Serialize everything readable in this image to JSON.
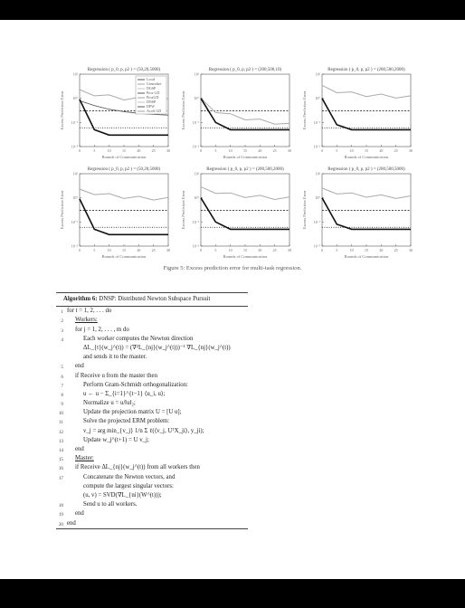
{
  "figure": {
    "caption": "Figure 5: Excess prediction error for multi-task regression.",
    "y_label": "Excess Prediction Error",
    "x_labels": [
      "Rounds of Communication",
      "Rounds of Communication",
      "Rounds of Communication",
      "Rounds of Communication",
      "Rounds of Communication",
      "Rounds of Communication"
    ],
    "panel_titles": [
      "Regression ( p_0, p, p2 ) = (50,20,5000)",
      "Regression ( p_0, p, p2 ) = (200,500,10)",
      "Regression ( p_0, p, p2 ) = (200,500,2000)",
      "Regression ( p_0, p, p2 ) = (50,20,5000)",
      "Regression ( p_0, p, p2 ) = (200,500,2000)",
      "Regression ( p_0, p, p2 ) = (200,500,5000)"
    ],
    "legend": [
      "Local",
      "Centralize",
      "DGSP",
      "Prox GD",
      "ProxGD",
      "DNSP",
      "DFW",
      "Accel GD"
    ],
    "x_ticks": [
      "0",
      "5",
      "10",
      "15",
      "20",
      "25",
      "30"
    ]
  },
  "chart_data": [
    {
      "type": "line",
      "title": "Regression ( p_0, p, p2 ) = (50,20,5000)",
      "xlabel": "Rounds of Communication",
      "ylabel": "Excess Prediction Error",
      "x": [
        0,
        5,
        10,
        15,
        20,
        25,
        30
      ],
      "series": [
        {
          "name": "DGSP",
          "values": [
            2.0,
            1.5,
            1.2,
            1.0,
            0.95,
            0.9,
            0.85
          ]
        },
        {
          "name": "Prox GD",
          "values": [
            0.8,
            0.5,
            0.35,
            0.28,
            0.24,
            0.22,
            0.2
          ]
        },
        {
          "name": "DNSP",
          "values": [
            0.9,
            0.05,
            0.03,
            0.03,
            0.03,
            0.03,
            0.03
          ]
        }
      ]
    },
    {
      "type": "line",
      "title": "Regression ( p_0, p, p2 ) = (200,500,10)",
      "xlabel": "Rounds of Communication",
      "ylabel": "Excess Prediction Error",
      "x": [
        0,
        5,
        10,
        15,
        20,
        25,
        30
      ],
      "series": [
        {
          "name": "DGSP",
          "values": [
            0.9,
            0.3,
            0.2,
            0.15,
            0.12,
            0.1,
            0.08
          ]
        },
        {
          "name": "DNSP",
          "values": [
            1.0,
            0.1,
            0.05,
            0.05,
            0.05,
            0.05,
            0.05
          ]
        }
      ]
    },
    {
      "type": "line",
      "title": "Regression ( p_0, p, p2 ) = (200,500,2000)",
      "xlabel": "Rounds of Communication",
      "ylabel": "Excess Prediction Error",
      "x": [
        0,
        5,
        10,
        15,
        20,
        25,
        30
      ],
      "series": [
        {
          "name": "DGSP",
          "values": [
            3.0,
            2.0,
            1.6,
            1.4,
            1.3,
            1.2,
            1.1
          ]
        },
        {
          "name": "DNSP",
          "values": [
            1.0,
            0.08,
            0.05,
            0.05,
            0.05,
            0.05,
            0.05
          ]
        }
      ]
    },
    {
      "type": "line",
      "title": "Regression ( p_0, p, p2 ) = (50,20,5000)",
      "xlabel": "Rounds of Communication",
      "ylabel": "Excess Prediction Error",
      "x": [
        0,
        5,
        10,
        15,
        20,
        25,
        30
      ],
      "series": [
        {
          "name": "DGSP",
          "values": [
            2.0,
            1.6,
            1.3,
            1.1,
            1.0,
            0.95,
            0.9
          ]
        },
        {
          "name": "DNSP",
          "values": [
            0.9,
            0.05,
            0.03,
            0.03,
            0.03,
            0.03,
            0.03
          ]
        }
      ]
    },
    {
      "type": "line",
      "title": "Regression ( p_0, p, p2 ) = (200,500,2000)",
      "xlabel": "Rounds of Communication",
      "ylabel": "Excess Prediction Error",
      "x": [
        0,
        5,
        10,
        15,
        20,
        25,
        30
      ],
      "series": [
        {
          "name": "DGSP",
          "values": [
            2.5,
            1.8,
            1.4,
            1.2,
            1.1,
            1.0,
            0.95
          ]
        },
        {
          "name": "DNSP",
          "values": [
            1.0,
            0.1,
            0.05,
            0.05,
            0.05,
            0.05,
            0.05
          ]
        }
      ]
    },
    {
      "type": "line",
      "title": "Regression ( p_0, p, p2 ) = (200,500,5000)",
      "xlabel": "Rounds of Communication",
      "ylabel": "Excess Prediction Error",
      "x": [
        0,
        5,
        10,
        15,
        20,
        25,
        30
      ],
      "series": [
        {
          "name": "DGSP",
          "values": [
            2.2,
            1.7,
            1.4,
            1.25,
            1.15,
            1.1,
            1.05
          ]
        },
        {
          "name": "DNSP",
          "values": [
            1.0,
            0.08,
            0.05,
            0.05,
            0.05,
            0.05,
            0.05
          ]
        }
      ]
    }
  ],
  "algorithm": {
    "number": "Algorithm 6:",
    "title": "DNSP: Distributed Newton Subspace Pursuit",
    "lines": [
      {
        "n": "1",
        "indent": 0,
        "text": "for t = 1, 2, . . . do",
        "bold": false
      },
      {
        "n": "2",
        "indent": 1,
        "text": "Workers:",
        "bold": false,
        "underline": true
      },
      {
        "n": "3",
        "indent": 1,
        "text": "for j = 1, 2, . . . , m do",
        "bold": false
      },
      {
        "n": "4",
        "indent": 2,
        "text": "Each worker computes the Newton direction",
        "bold": false
      },
      {
        "n": "",
        "indent": 2,
        "text": "ΔL_{t}(w_j^(t)) = (∇²L_{nj}(w_j^(t)))⁻¹ ∇L_{nj}(w_j^(t))",
        "bold": false
      },
      {
        "n": "",
        "indent": 2,
        "text": "and sends it to the master.",
        "bold": false
      },
      {
        "n": "5",
        "indent": 1,
        "text": "end",
        "bold": false
      },
      {
        "n": "6",
        "indent": 1,
        "text": "if Receive u from the master then",
        "bold": false
      },
      {
        "n": "7",
        "indent": 2,
        "text": "Perform Gram-Schmidt orthogonalization:",
        "bold": false
      },
      {
        "n": "8",
        "indent": 2,
        "text": "u ← u − Σ_{i=1}^{t−1} ⟨u_i, u⟩;",
        "bold": false
      },
      {
        "n": "9",
        "indent": 2,
        "text": "Normalize u = u/‖u‖₂;",
        "bold": false
      },
      {
        "n": "10",
        "indent": 2,
        "text": "Update the projection matrix U = [U u];",
        "bold": false
      },
      {
        "n": "11",
        "indent": 2,
        "text": "Solve the projected ERM problem:",
        "bold": false
      },
      {
        "n": "12",
        "indent": 2,
        "text": "v_j = arg min_{v_j} 1/n Σ ℓ(⟨v_j, UᵀX_ji⟩, y_ji);",
        "bold": false
      },
      {
        "n": "13",
        "indent": 2,
        "text": "Update w_j^(t+1) = U v_j;",
        "bold": false
      },
      {
        "n": "14",
        "indent": 1,
        "text": "end",
        "bold": false
      },
      {
        "n": "15",
        "indent": 1,
        "text": "Master:",
        "bold": false,
        "underline": true
      },
      {
        "n": "16",
        "indent": 1,
        "text": "if Receive ΔL_{nj}(w_j^(t)) from all workers then",
        "bold": false
      },
      {
        "n": "17",
        "indent": 2,
        "text": "Concatenate the Newton vectors, and",
        "bold": false
      },
      {
        "n": "",
        "indent": 2,
        "text": "compute the largest singular vectors:",
        "bold": false
      },
      {
        "n": "",
        "indent": 2,
        "text": "(u, v) = SVD(∇L_{ni}(W^(t)));",
        "bold": false
      },
      {
        "n": "18",
        "indent": 2,
        "text": "Send u to all workers.",
        "bold": false
      },
      {
        "n": "19",
        "indent": 1,
        "text": "end",
        "bold": false
      },
      {
        "n": "20",
        "indent": 0,
        "text": "end",
        "bold": false
      }
    ]
  }
}
